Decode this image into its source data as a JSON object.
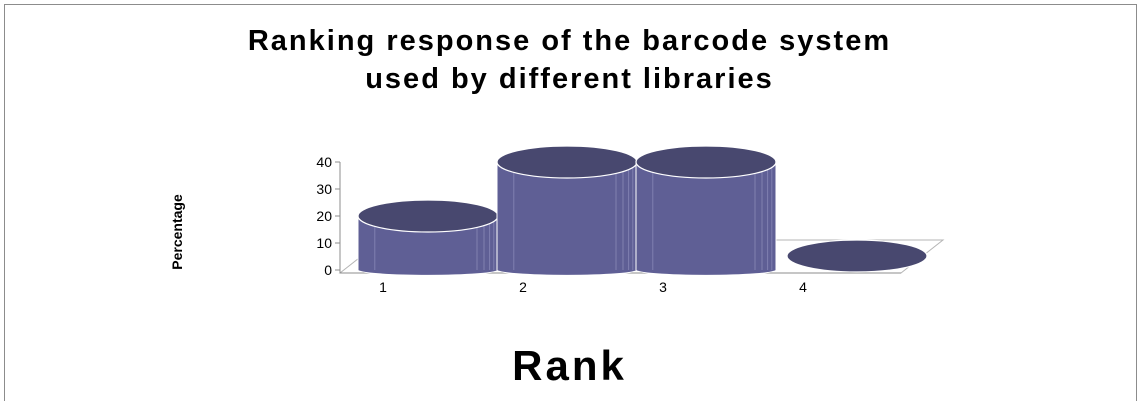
{
  "chart_data": {
    "type": "bar",
    "title_line1": "Ranking response of the barcode system",
    "title_line2": "used by different libraries",
    "xlabel": "Rank",
    "ylabel": "Percentage",
    "categories": [
      "1",
      "2",
      "3",
      "4"
    ],
    "values": [
      20,
      40,
      40,
      0
    ],
    "ylim": [
      0,
      40
    ],
    "yticks": [
      0,
      10,
      20,
      30,
      40
    ],
    "colors": {
      "bar": "#5f5f95",
      "top": "#48486f",
      "edge": "#ffffff"
    }
  }
}
